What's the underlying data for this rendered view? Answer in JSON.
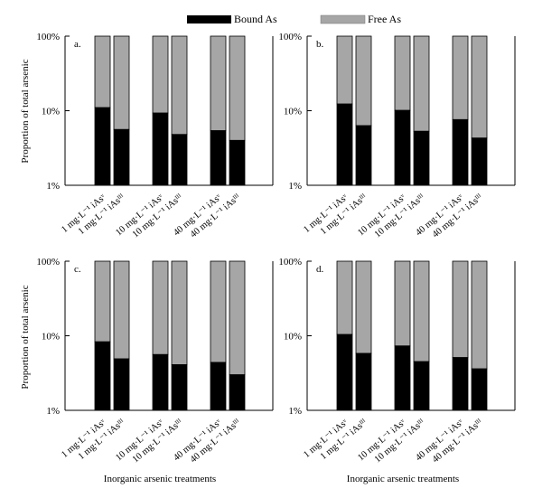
{
  "legend": {
    "placement": "top-center",
    "items": [
      {
        "label": "Bound As",
        "color": "#000000"
      },
      {
        "label": "Free As",
        "color": "#a6a6a6"
      }
    ]
  },
  "y_axis_label": "Proportion of total arsenic",
  "x_axis_label": "Inorganic arsenic treatments",
  "chart_data": [
    {
      "type": "bar",
      "stacked": true,
      "yscale": "log",
      "panel_label": "a.",
      "ylim": [
        1,
        100
      ],
      "yticks": [
        "1%",
        "10%",
        "100%"
      ],
      "ytick_values": [
        1,
        10,
        100
      ],
      "categories": [
        "1 mg·L⁻¹ iAsᵛ",
        "1 mg·L⁻¹ iAsᴵᴵᴵ",
        "10 mg·L⁻¹ iAsᵛ",
        "10 mg·L⁻¹ iAsᴵᴵᴵ",
        "40 mg·L⁻¹ iAsᵛ",
        "40 mg·L⁻¹ iAsᴵᴵᴵ"
      ],
      "series": [
        {
          "name": "Bound As",
          "color": "#000000",
          "values": [
            11.0,
            5.6,
            9.3,
            4.8,
            5.4,
            4.0
          ]
        },
        {
          "name": "Free As",
          "color": "#a6a6a6",
          "values": [
            89.0,
            94.4,
            90.7,
            95.2,
            94.6,
            96.0
          ]
        }
      ]
    },
    {
      "type": "bar",
      "stacked": true,
      "yscale": "log",
      "panel_label": "b.",
      "ylim": [
        1,
        100
      ],
      "yticks": [
        "1%",
        "10%",
        "100%"
      ],
      "ytick_values": [
        1,
        10,
        100
      ],
      "categories": [
        "1 mg·L⁻¹ iAsᵛ",
        "1 mg·L⁻¹ iAsᴵᴵᴵ",
        "10 mg·L⁻¹ iAsᵛ",
        "10 mg·L⁻¹ iAsᴵᴵᴵ",
        "40 mg·L⁻¹ iAsᵛ",
        "40 mg·L⁻¹ iAsᴵᴵᴵ"
      ],
      "series": [
        {
          "name": "Bound As",
          "color": "#000000",
          "values": [
            12.3,
            6.3,
            10.1,
            5.3,
            7.6,
            4.3
          ]
        },
        {
          "name": "Free As",
          "color": "#a6a6a6",
          "values": [
            87.7,
            93.7,
            89.9,
            94.7,
            92.4,
            95.7
          ]
        }
      ]
    },
    {
      "type": "bar",
      "stacked": true,
      "yscale": "log",
      "panel_label": "c.",
      "ylim": [
        1,
        100
      ],
      "yticks": [
        "1%",
        "10%",
        "100%"
      ],
      "ytick_values": [
        1,
        10,
        100
      ],
      "categories": [
        "1 mg·L⁻¹ iAsᵛ",
        "1 mg·L⁻¹ iAsᴵᴵᴵ",
        "10 mg·L⁻¹ iAsᵛ",
        "10 mg·L⁻¹ iAsᴵᴵᴵ",
        "40 mg·L⁻¹ iAsᵛ",
        "40 mg·L⁻¹ iAsᴵᴵᴵ"
      ],
      "series": [
        {
          "name": "Bound As",
          "color": "#000000",
          "values": [
            8.3,
            4.9,
            5.6,
            4.1,
            4.4,
            3.0
          ]
        },
        {
          "name": "Free As",
          "color": "#a6a6a6",
          "values": [
            91.7,
            95.1,
            94.4,
            95.9,
            95.6,
            97.0
          ]
        }
      ]
    },
    {
      "type": "bar",
      "stacked": true,
      "yscale": "log",
      "panel_label": "d.",
      "ylim": [
        1,
        100
      ],
      "yticks": [
        "1%",
        "10%",
        "100%"
      ],
      "ytick_values": [
        1,
        10,
        100
      ],
      "categories": [
        "1 mg·L⁻¹ iAsᵛ",
        "1 mg·L⁻¹ iAsᴵᴵᴵ",
        "10 mg·L⁻¹ iAsᵛ",
        "10 mg·L⁻¹ iAsᴵᴵᴵ",
        "40 mg·L⁻¹ iAsᵛ",
        "40 mg·L⁻¹ iAsᴵᴵᴵ"
      ],
      "series": [
        {
          "name": "Bound As",
          "color": "#000000",
          "values": [
            10.4,
            5.8,
            7.3,
            4.5,
            5.1,
            3.6
          ]
        },
        {
          "name": "Free As",
          "color": "#a6a6a6",
          "values": [
            89.6,
            94.2,
            92.7,
            95.5,
            94.9,
            96.4
          ]
        }
      ]
    }
  ]
}
